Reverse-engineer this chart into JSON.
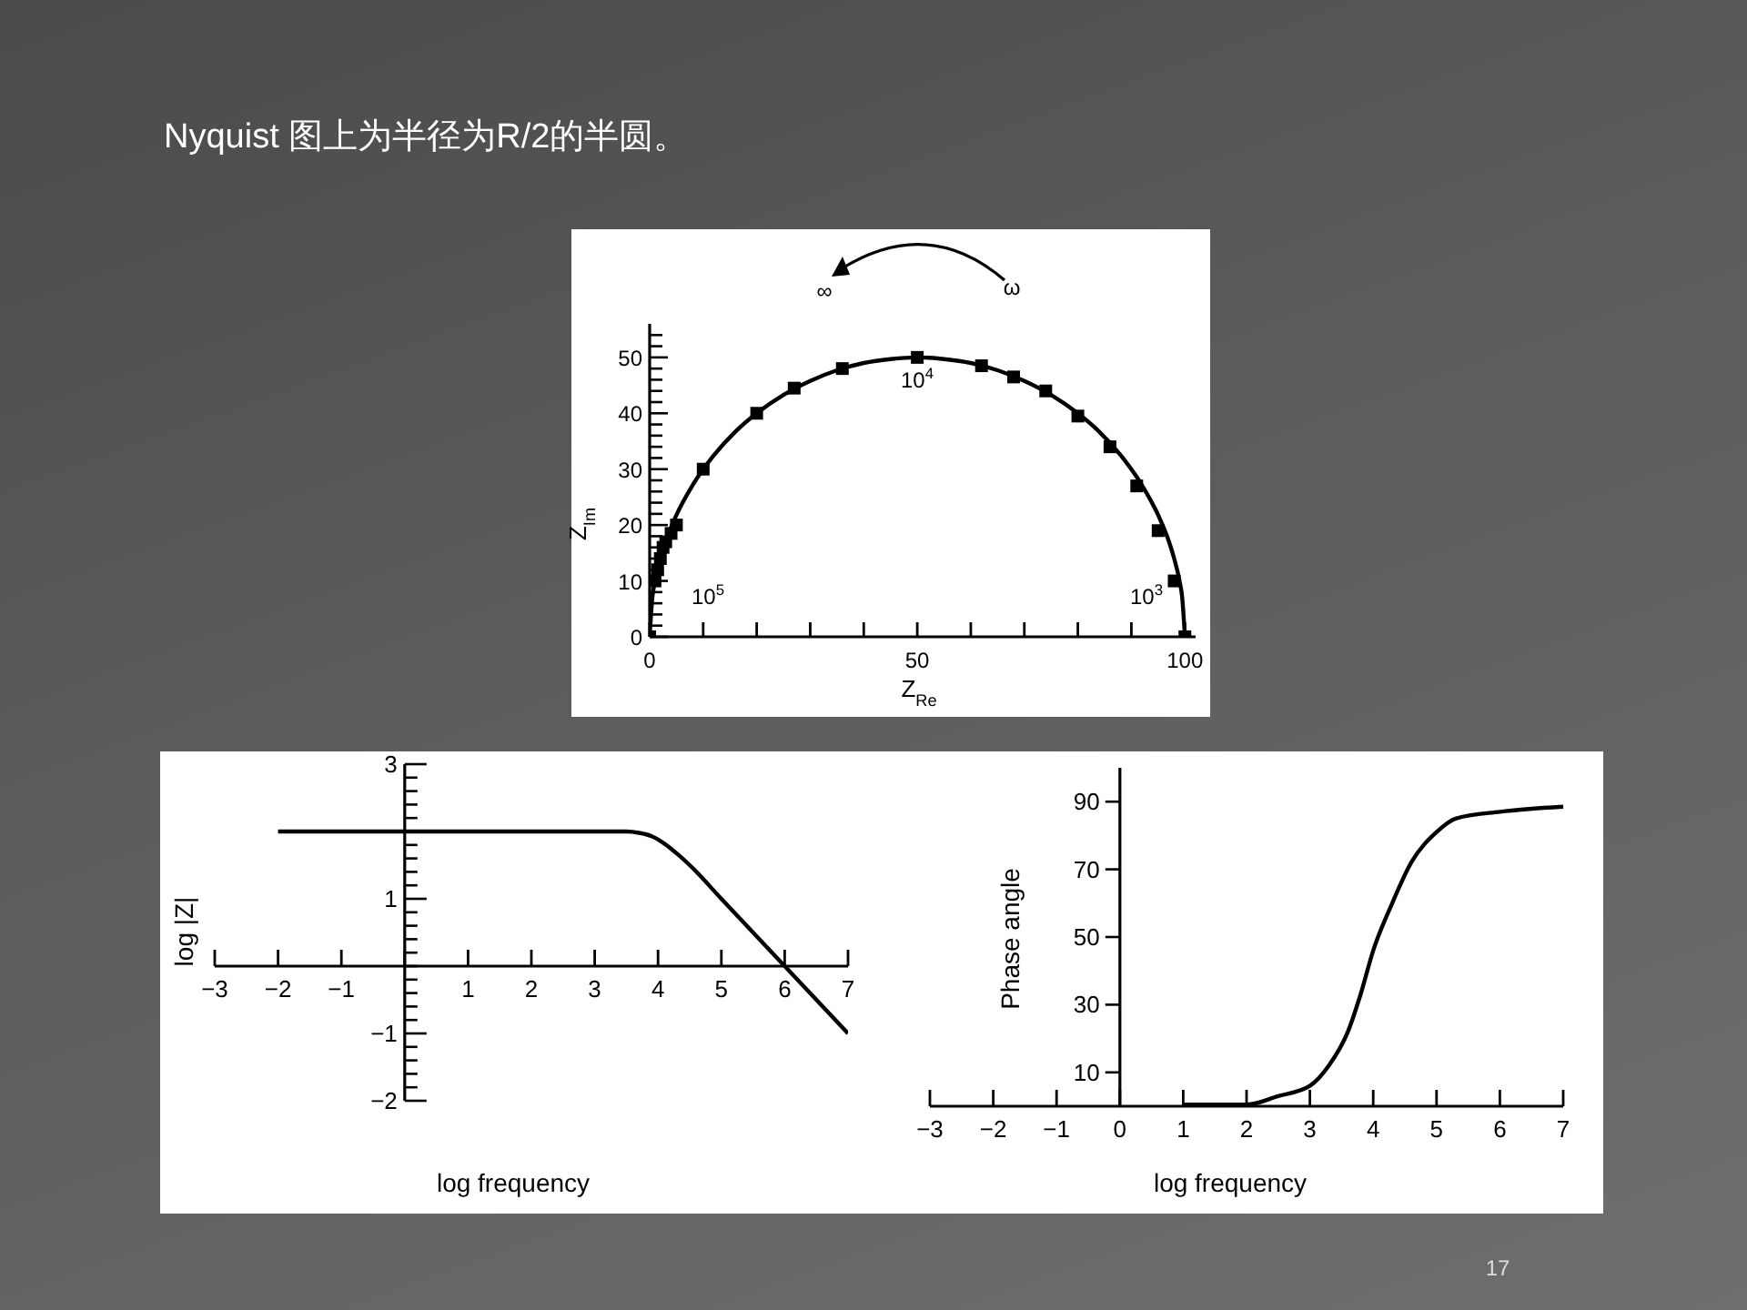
{
  "chart_data": [
    {
      "type": "line",
      "title": "Nyquist 图上为半径为R/2的半圆。",
      "xlabel": "Z$_{Re}$",
      "ylabel": "Z$_{Im}$",
      "xlim": [
        0,
        102
      ],
      "ylim": [
        0,
        56
      ],
      "xticks": [
        0,
        {
          "value": 10,
          "label": null
        },
        {
          "value": 20,
          "label": null
        },
        {
          "value": 30,
          "label": null
        },
        {
          "value": 40,
          "label": null
        },
        50,
        {
          "value": 60,
          "label": null
        },
        {
          "value": 70,
          "label": null
        },
        {
          "value": 80,
          "label": null
        },
        {
          "value": 90,
          "label": null
        },
        100
      ],
      "yticks": [
        0,
        {
          "value": 2,
          "label": null
        },
        {
          "value": 4,
          "label": null
        },
        {
          "value": 6,
          "label": null
        },
        {
          "value": 8,
          "label": null
        },
        10,
        {
          "value": 12,
          "label": null
        },
        {
          "value": 14,
          "label": null
        },
        {
          "value": 16,
          "label": null
        },
        {
          "value": 18,
          "label": null
        },
        20,
        {
          "value": 22,
          "label": null
        },
        {
          "value": 24,
          "label": null
        },
        {
          "value": 26,
          "label": null
        },
        {
          "value": 28,
          "label": null
        },
        30,
        {
          "value": 32,
          "label": null
        },
        {
          "value": 34,
          "label": null
        },
        {
          "value": 36,
          "label": null
        },
        {
          "value": 38,
          "label": null
        },
        40,
        {
          "value": 42,
          "label": null
        },
        {
          "value": 44,
          "label": null
        },
        {
          "value": 46,
          "label": null
        },
        {
          "value": 48,
          "label": null
        },
        50,
        {
          "value": 52,
          "label": null
        },
        {
          "value": 54,
          "label": null
        }
      ],
      "series": [
        {
          "type": "line",
          "color": "#000000",
          "x": [
            0,
            0.5,
            1,
            2,
            3,
            5,
            8,
            12,
            16,
            20,
            25,
            30,
            35,
            40,
            45,
            50,
            55,
            60,
            65,
            70,
            75,
            80,
            84,
            88,
            92,
            95,
            97,
            98,
            99,
            99.5,
            100
          ],
          "values": [
            0,
            7,
            10,
            14,
            17.1,
            21.8,
            27.1,
            32.5,
            36.7,
            40,
            43.3,
            45.8,
            47.7,
            49,
            49.7,
            50,
            49.7,
            49,
            47.7,
            45.8,
            43.3,
            40,
            36.7,
            32.5,
            27.1,
            21.8,
            17.1,
            14,
            10,
            7,
            0
          ]
        },
        {
          "type": "scatter",
          "marker": "square",
          "color": "#000000",
          "x": [
            0,
            1,
            1.5,
            2,
            2.5,
            3,
            4,
            5,
            10,
            20,
            27,
            36,
            50,
            62,
            68,
            74,
            80,
            86,
            91,
            95,
            98,
            100
          ],
          "values": [
            0,
            10,
            12,
            14,
            16,
            17,
            18.5,
            20,
            30,
            40,
            44.5,
            48,
            50,
            48.5,
            46.5,
            44,
            39.5,
            34,
            27,
            19,
            10,
            0
          ]
        }
      ],
      "annotations": [
        "∞",
        "ω",
        "10$^{4}$",
        "10$^{5}$",
        "10$^{3}$"
      ]
    },
    {
      "type": "line",
      "xlabel": "log frequency",
      "ylabel": "log |Z|",
      "xlim": [
        -3,
        7
      ],
      "ylim": [
        -2,
        3
      ],
      "xticks": [
        -3,
        -2,
        -1,
        {
          "value": 0,
          "label": null
        },
        1,
        2,
        3,
        4,
        5,
        6,
        7
      ],
      "yticks": [
        -2,
        {
          "value": -1.8,
          "label": null
        },
        {
          "value": -1.6,
          "label": null
        },
        {
          "value": -1.4,
          "label": null
        },
        {
          "value": -1.2,
          "label": null
        },
        -1,
        {
          "value": -0.8,
          "label": null
        },
        {
          "value": -0.6,
          "label": null
        },
        {
          "value": -0.4,
          "label": null
        },
        {
          "value": -0.2,
          "label": null
        },
        {
          "value": 0,
          "label": null
        },
        {
          "value": 0.2,
          "label": null
        },
        {
          "value": 0.4,
          "label": null
        },
        {
          "value": 0.6,
          "label": null
        },
        {
          "value": 0.8,
          "label": null
        },
        1,
        {
          "value": 1.2,
          "label": null
        },
        {
          "value": 1.4,
          "label": null
        },
        {
          "value": 1.6,
          "label": null
        },
        {
          "value": 1.8,
          "label": null
        },
        {
          "value": 2,
          "label": null
        },
        {
          "value": 2.2,
          "label": null
        },
        {
          "value": 2.4,
          "label": null
        },
        {
          "value": 2.6,
          "label": null
        },
        {
          "value": 2.8,
          "label": null
        },
        3
      ],
      "series": [
        {
          "color": "#000000",
          "x": [
            -2,
            3.5,
            3.7,
            3.9,
            4.1,
            4.3,
            4.5,
            5,
            6,
            7
          ],
          "values": [
            2,
            2,
            1.98,
            1.93,
            1.82,
            1.67,
            1.5,
            1,
            0,
            -1
          ]
        }
      ]
    },
    {
      "type": "line",
      "xlabel": "log frequency",
      "ylabel": "Phase angle",
      "xlim": [
        -3,
        7
      ],
      "ylim": [
        0,
        100
      ],
      "xticks": [
        -3,
        -2,
        -1,
        0,
        1,
        2,
        3,
        4,
        5,
        6,
        7
      ],
      "yticks": [
        10,
        30,
        50,
        70,
        90
      ],
      "series": [
        {
          "color": "#000000",
          "x": [
            1,
            2,
            2.5,
            3,
            3.3,
            3.6,
            3.8,
            4,
            4.3,
            4.6,
            5,
            5.3,
            6,
            7
          ],
          "values": [
            0.5,
            0.5,
            3,
            6,
            12,
            22,
            33,
            46,
            60,
            72,
            81,
            85,
            87,
            88.5
          ]
        }
      ],
      "annotations": [
        "17"
      ]
    }
  ]
}
